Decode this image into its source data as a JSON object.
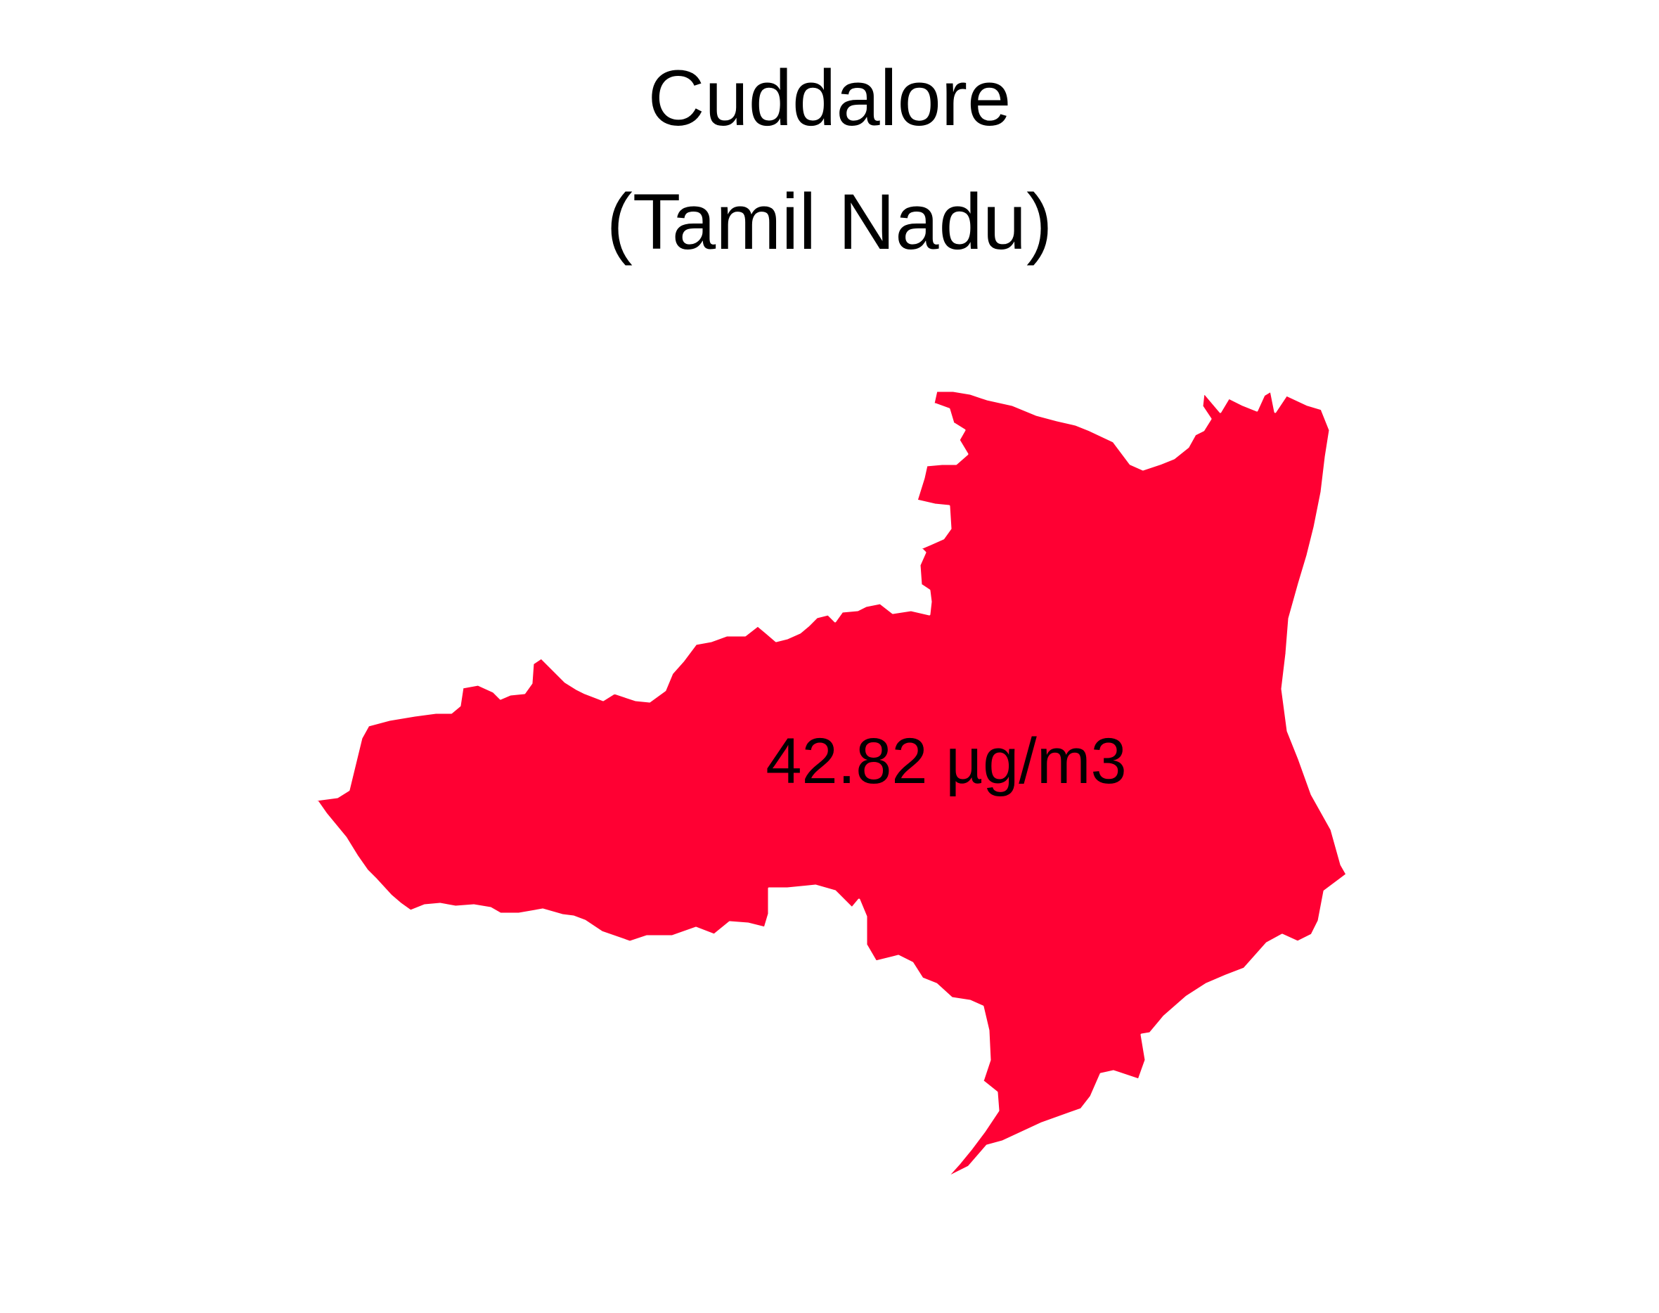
{
  "map": {
    "title_line1": "Cuddalore",
    "title_line2": "(Tamil Nadu)",
    "region_name": "Cuddalore",
    "state": "Tamil Nadu",
    "value": 42.82,
    "value_label": "42.82 µg/m3",
    "unit": "µg/m3",
    "fill_color": "#ff0033",
    "stroke_color": "#ffffff",
    "background_color": "#ffffff"
  }
}
